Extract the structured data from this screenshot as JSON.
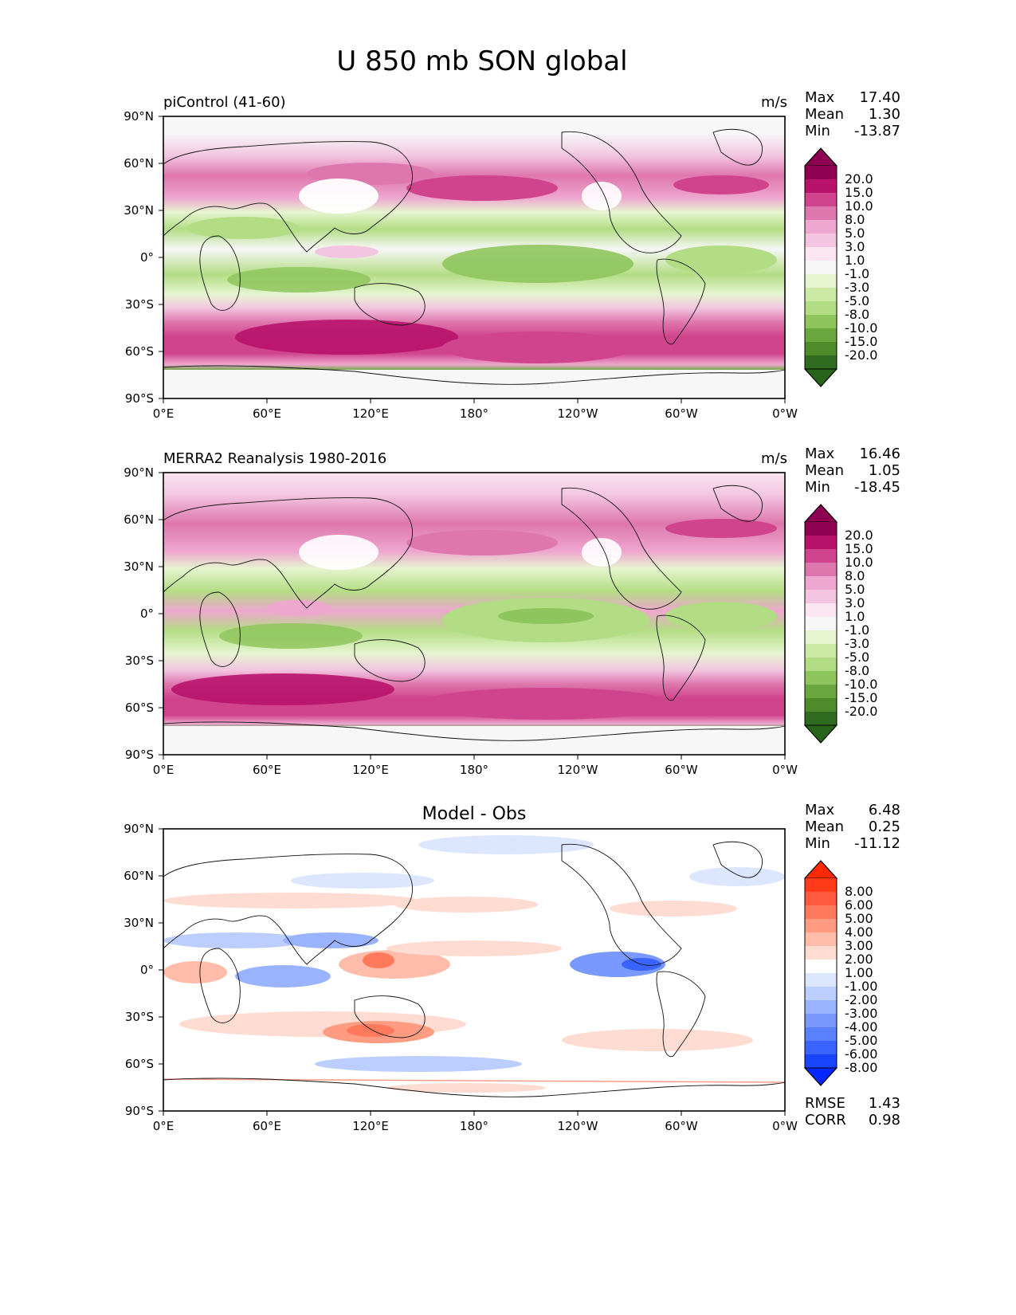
{
  "title": "U 850 mb SON global",
  "x_ticks": [
    "0°E",
    "60°E",
    "120°E",
    "180°",
    "120°W",
    "60°W",
    "0°W"
  ],
  "y_ticks": [
    "90°N",
    "60°N",
    "30°N",
    "0°",
    "30°S",
    "60°S",
    "90°S"
  ],
  "panels": [
    {
      "left_title": "piControl (41-60)",
      "center_title": "",
      "units": "m/s",
      "stats": [
        {
          "label": "Max",
          "value": "17.40"
        },
        {
          "label": "Mean",
          "value": "1.30"
        },
        {
          "label": "Min",
          "value": "-13.87"
        }
      ],
      "colorbar_levels": [
        "20.0",
        "15.0",
        "10.0",
        "8.0",
        "5.0",
        "3.0",
        "1.0",
        "-1.0",
        "-3.0",
        "-5.0",
        "-8.0",
        "-10.0",
        "-15.0",
        "-20.0"
      ],
      "footer_stats": []
    },
    {
      "left_title": "MERRA2 Reanalysis 1980-2016",
      "center_title": "",
      "units": "m/s",
      "stats": [
        {
          "label": "Max",
          "value": "16.46"
        },
        {
          "label": "Mean",
          "value": "1.05"
        },
        {
          "label": "Min",
          "value": "-18.45"
        }
      ],
      "colorbar_levels": [
        "20.0",
        "15.0",
        "10.0",
        "8.0",
        "5.0",
        "3.0",
        "1.0",
        "-1.0",
        "-3.0",
        "-5.0",
        "-8.0",
        "-10.0",
        "-15.0",
        "-20.0"
      ],
      "footer_stats": []
    },
    {
      "left_title": "",
      "center_title": "Model - Obs",
      "units": "",
      "stats": [
        {
          "label": "Max",
          "value": "6.48"
        },
        {
          "label": "Mean",
          "value": "0.25"
        },
        {
          "label": "Min",
          "value": "-11.12"
        }
      ],
      "colorbar_levels": [
        "8.00",
        "6.00",
        "5.00",
        "4.00",
        "3.00",
        "2.00",
        "1.00",
        "-1.00",
        "-2.00",
        "-3.00",
        "-4.00",
        "-5.00",
        "-6.00",
        "-8.00"
      ],
      "footer_stats": [
        {
          "label": "RMSE",
          "value": "1.43"
        },
        {
          "label": "CORR",
          "value": "0.98"
        }
      ]
    }
  ],
  "colors": {
    "pig_top": "#8e0152",
    "pig_bottom": "#276419",
    "pig_bands": [
      "#8e0152",
      "#b8136b",
      "#d0448e",
      "#de77ae",
      "#eea7cf",
      "#f3c5e1",
      "#fbe6f1",
      "#f7f7f7",
      "#e6f5d0",
      "#cdeaa5",
      "#b3dd84",
      "#8fc55d",
      "#6aa83f",
      "#4d8b2b",
      "#2f6b1e"
    ],
    "bwr_top": "#ff2a00",
    "bwr_bottom": "#0027ff",
    "bwr_bands": [
      "#ff3b1a",
      "#ff5a3d",
      "#ff7a5c",
      "#ff9c82",
      "#ffbcab",
      "#ffdcd2",
      "#ffffff",
      "#dde6ff",
      "#bccdff",
      "#9ab3ff",
      "#7a99ff",
      "#5980ff",
      "#3a63ff",
      "#1a45ff"
    ]
  }
}
